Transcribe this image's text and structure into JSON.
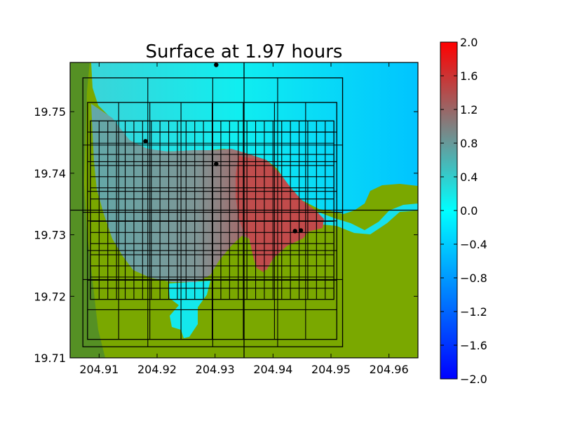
{
  "chart_data": {
    "type": "heatmap",
    "title": "Surface at 1.97 hours",
    "xlabel": "",
    "ylabel": "",
    "xlim": [
      204.905,
      204.965
    ],
    "ylim": [
      19.71,
      19.758
    ],
    "x_ticks": [
      "204.91",
      "204.92",
      "204.93",
      "204.94",
      "204.95",
      "204.96"
    ],
    "x_tick_values": [
      204.91,
      204.92,
      204.93,
      204.94,
      204.95,
      204.96
    ],
    "y_ticks": [
      "19.71",
      "19.72",
      "19.73",
      "19.74",
      "19.75"
    ],
    "y_tick_values": [
      19.71,
      19.72,
      19.73,
      19.74,
      19.75
    ],
    "colorbar": {
      "range": [
        -2.0,
        2.0
      ],
      "ticks": [
        "2.0",
        "1.6",
        "1.2",
        "0.8",
        "0.4",
        "0.0",
        "−0.4",
        "−0.8",
        "−1.2",
        "−1.6",
        "−2.0"
      ],
      "tick_values": [
        2.0,
        1.6,
        1.2,
        0.8,
        0.4,
        0.0,
        -0.4,
        -0.8,
        -1.2,
        -1.6,
        -2.0
      ],
      "colors": [
        "#0000ff",
        "#00ffff",
        "#ff0000"
      ]
    },
    "colors": {
      "land": "#7aa800",
      "land_dark": "#4f8c2a",
      "water_low": "#00c8ff",
      "water_surface": "#30d8d8",
      "inundation": "#6aa5a5",
      "peak": "#c04848"
    },
    "crosshair": {
      "x": 204.935,
      "y": 19.734
    },
    "gauges": [
      {
        "x": 204.9302,
        "y": 19.7576
      },
      {
        "x": 204.918,
        "y": 19.7452
      },
      {
        "x": 204.9302,
        "y": 19.7415
      },
      {
        "x": 204.9438,
        "y": 19.7306
      },
      {
        "x": 204.9448,
        "y": 19.7307
      }
    ],
    "grid_boxes": [
      {
        "x0": 204.9072,
        "x1": 204.952,
        "y0": 19.7118,
        "y1": 19.7555,
        "nx": 4,
        "ny": 4
      },
      {
        "x0": 204.908,
        "x1": 204.951,
        "y0": 19.713,
        "y1": 19.7515,
        "nx": 8,
        "ny": 8
      },
      {
        "x0": 204.9085,
        "x1": 204.9505,
        "y0": 19.7195,
        "y1": 19.7485,
        "nx": 28,
        "ny": 16
      }
    ]
  }
}
